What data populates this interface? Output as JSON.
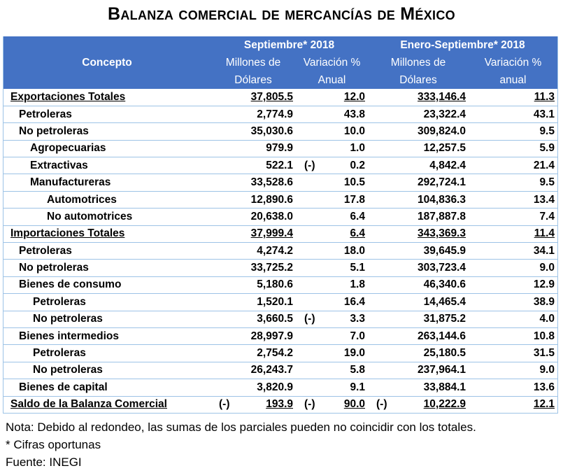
{
  "title": "Balanza comercial de mercancías de México",
  "header": {
    "concepto": "Concepto",
    "period1": "Septiembre* 2018",
    "period2": "Enero-Septiembre* 2018",
    "millones1": "Millones de",
    "dolares1": "Dólares",
    "variacion1": "Variación %",
    "anual1": "Anual",
    "millones2": "Millones de",
    "dolares2": "Dólares",
    "variacion2": "Variación %",
    "anual2": "anual"
  },
  "rows": [
    {
      "concepto": "Exportaciones Totales",
      "level": "0",
      "total": true,
      "m1": "37,805.5",
      "v1pre": "",
      "v1": "12.0",
      "m2pre": "",
      "m2": "333,146.4",
      "v2": "11.3"
    },
    {
      "concepto": "Petroleras",
      "level": "1",
      "m1": "2,774.9",
      "v1pre": "",
      "v1": "43.8",
      "m2pre": "",
      "m2": "23,322.4",
      "v2": "43.1"
    },
    {
      "concepto": "No petroleras",
      "level": "1",
      "m1": "35,030.6",
      "v1pre": "",
      "v1": "10.0",
      "m2pre": "",
      "m2": "309,824.0",
      "v2": "9.5"
    },
    {
      "concepto": "Agropecuarias",
      "level": "2",
      "m1": "979.9",
      "v1pre": "",
      "v1": "1.0",
      "m2pre": "",
      "m2": "12,257.5",
      "v2": "5.9"
    },
    {
      "concepto": "Extractivas",
      "level": "2",
      "m1": "522.1",
      "v1pre": "(-)",
      "v1": "0.2",
      "m2pre": "",
      "m2": "4,842.4",
      "v2": "21.4"
    },
    {
      "concepto": "Manufactureras",
      "level": "2",
      "m1": "33,528.6",
      "v1pre": "",
      "v1": "10.5",
      "m2pre": "",
      "m2": "292,724.1",
      "v2": "9.5"
    },
    {
      "concepto": "Automotrices",
      "level": "3",
      "m1": "12,890.6",
      "v1pre": "",
      "v1": "17.8",
      "m2pre": "",
      "m2": "104,836.3",
      "v2": "13.4"
    },
    {
      "concepto": "No automotrices",
      "level": "3",
      "m1": "20,638.0",
      "v1pre": "",
      "v1": "6.4",
      "m2pre": "",
      "m2": "187,887.8",
      "v2": "7.4"
    },
    {
      "concepto": "Importaciones Totales",
      "level": "0",
      "total": true,
      "m1": "37,999.4",
      "v1pre": "",
      "v1": "6.4",
      "m2pre": "",
      "m2": "343,369.3",
      "v2": "11.4"
    },
    {
      "concepto": "Petroleras",
      "level": "1",
      "m1": "4,274.2",
      "v1pre": "",
      "v1": "18.0",
      "m2pre": "",
      "m2": "39,645.9",
      "v2": "34.1"
    },
    {
      "concepto": "No petroleras",
      "level": "1",
      "m1": "33,725.2",
      "v1pre": "",
      "v1": "5.1",
      "m2pre": "",
      "m2": "303,723.4",
      "v2": "9.0"
    },
    {
      "concepto": "Bienes de consumo",
      "level": "1",
      "m1": "5,180.6",
      "v1pre": "",
      "v1": "1.8",
      "m2pre": "",
      "m2": "46,340.6",
      "v2": "12.9"
    },
    {
      "concepto": "Petroleras",
      "level": "15",
      "m1": "1,520.1",
      "v1pre": "",
      "v1": "16.4",
      "m2pre": "",
      "m2": "14,465.4",
      "v2": "38.9"
    },
    {
      "concepto": "No petroleras",
      "level": "15",
      "m1": "3,660.5",
      "v1pre": "(-)",
      "v1": "3.3",
      "m2pre": "",
      "m2": "31,875.2",
      "v2": "4.0"
    },
    {
      "concepto": "Bienes intermedios",
      "level": "1",
      "m1": "28,997.9",
      "v1pre": "",
      "v1": "7.0",
      "m2pre": "",
      "m2": "263,144.6",
      "v2": "10.8"
    },
    {
      "concepto": "Petroleras",
      "level": "15",
      "m1": "2,754.2",
      "v1pre": "",
      "v1": "19.0",
      "m2pre": "",
      "m2": "25,180.5",
      "v2": "31.5"
    },
    {
      "concepto": "No petroleras",
      "level": "15",
      "m1": "26,243.7",
      "v1pre": "",
      "v1": "5.8",
      "m2pre": "",
      "m2": "237,964.1",
      "v2": "9.0"
    },
    {
      "concepto": "Bienes de capital",
      "level": "1",
      "m1": "3,820.9",
      "v1pre": "",
      "v1": "9.1",
      "m2pre": "",
      "m2": "33,884.1",
      "v2": "13.6"
    },
    {
      "concepto": "Saldo de la Balanza Comercial",
      "level": "0",
      "total": true,
      "m1pre": "(-)",
      "m1": "193.9",
      "v1pre": "(-)",
      "v1": "90.0",
      "m2pre": "(-)",
      "m2": "10,222.9",
      "v2": "12.1"
    }
  ],
  "notes": [
    "Nota: Debido al redondeo, las sumas de los parciales pueden no coincidir con los totales.",
    "* Cifras oportunas",
    "Fuente: INEGI"
  ]
}
